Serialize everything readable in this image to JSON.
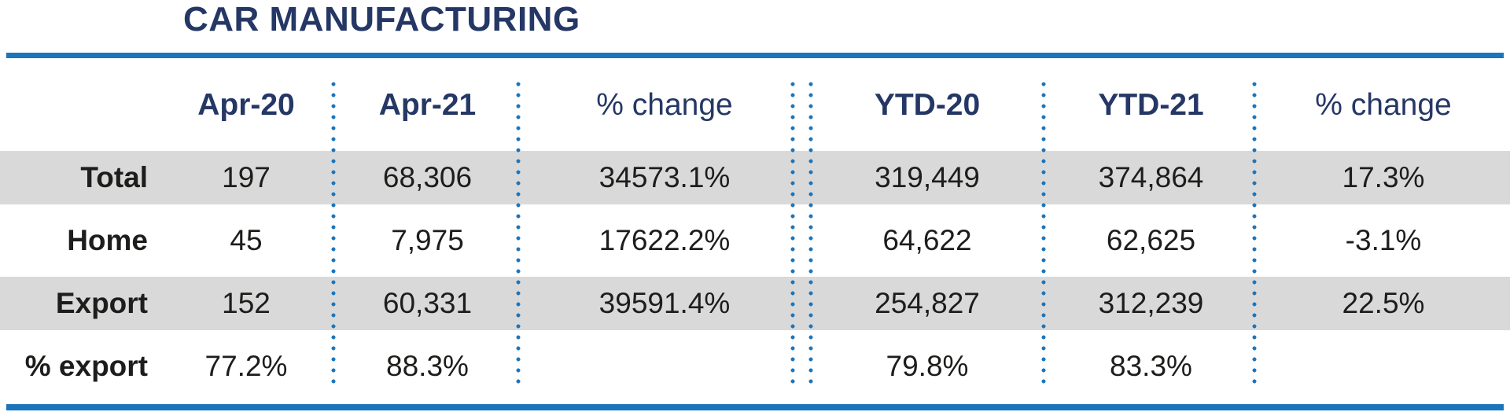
{
  "title": "CAR MANUFACTURING",
  "colors": {
    "accent_blue": "#1b75bc",
    "heading_navy": "#253765",
    "stripe_gray": "#d9d9d9",
    "body_text": "#1d1d1b"
  },
  "table": {
    "columns": [
      {
        "label": ""
      },
      {
        "label": "Apr-20"
      },
      {
        "label": "Apr-21"
      },
      {
        "label": "% change"
      },
      {
        "label": "YTD-20"
      },
      {
        "label": "YTD-21"
      },
      {
        "label": "% change"
      }
    ],
    "rows": [
      {
        "label": "Total",
        "values": [
          "197",
          "68,306",
          "34573.1%",
          "319,449",
          "374,864",
          "17.3%"
        ]
      },
      {
        "label": "Home",
        "values": [
          "45",
          "7,975",
          "17622.2%",
          "64,622",
          "62,625",
          "-3.1%"
        ]
      },
      {
        "label": "Export",
        "values": [
          "152",
          "60,331",
          "39591.4%",
          "254,827",
          "312,239",
          "22.5%"
        ]
      },
      {
        "label": "% export",
        "values": [
          "77.2%",
          "88.3%",
          "",
          "79.8%",
          "83.3%",
          ""
        ]
      }
    ]
  },
  "chart_data": {
    "type": "table",
    "title": "CAR MANUFACTURING",
    "columns": [
      "Apr-20",
      "Apr-21",
      "% change",
      "YTD-20",
      "YTD-21",
      "% change"
    ],
    "rows": [
      {
        "label": "Total",
        "apr_20": 197,
        "apr_21": 68306,
        "pct_change_month": 34573.1,
        "ytd_20": 319449,
        "ytd_21": 374864,
        "pct_change_ytd": 17.3
      },
      {
        "label": "Home",
        "apr_20": 45,
        "apr_21": 7975,
        "pct_change_month": 17622.2,
        "ytd_20": 64622,
        "ytd_21": 62625,
        "pct_change_ytd": -3.1
      },
      {
        "label": "Export",
        "apr_20": 152,
        "apr_21": 60331,
        "pct_change_month": 39591.4,
        "ytd_20": 254827,
        "ytd_21": 312239,
        "pct_change_ytd": 22.5
      },
      {
        "label": "% export",
        "apr_20": "77.2%",
        "apr_21": "88.3%",
        "pct_change_month": null,
        "ytd_20": "79.8%",
        "ytd_21": "83.3%",
        "pct_change_ytd": null
      }
    ]
  }
}
